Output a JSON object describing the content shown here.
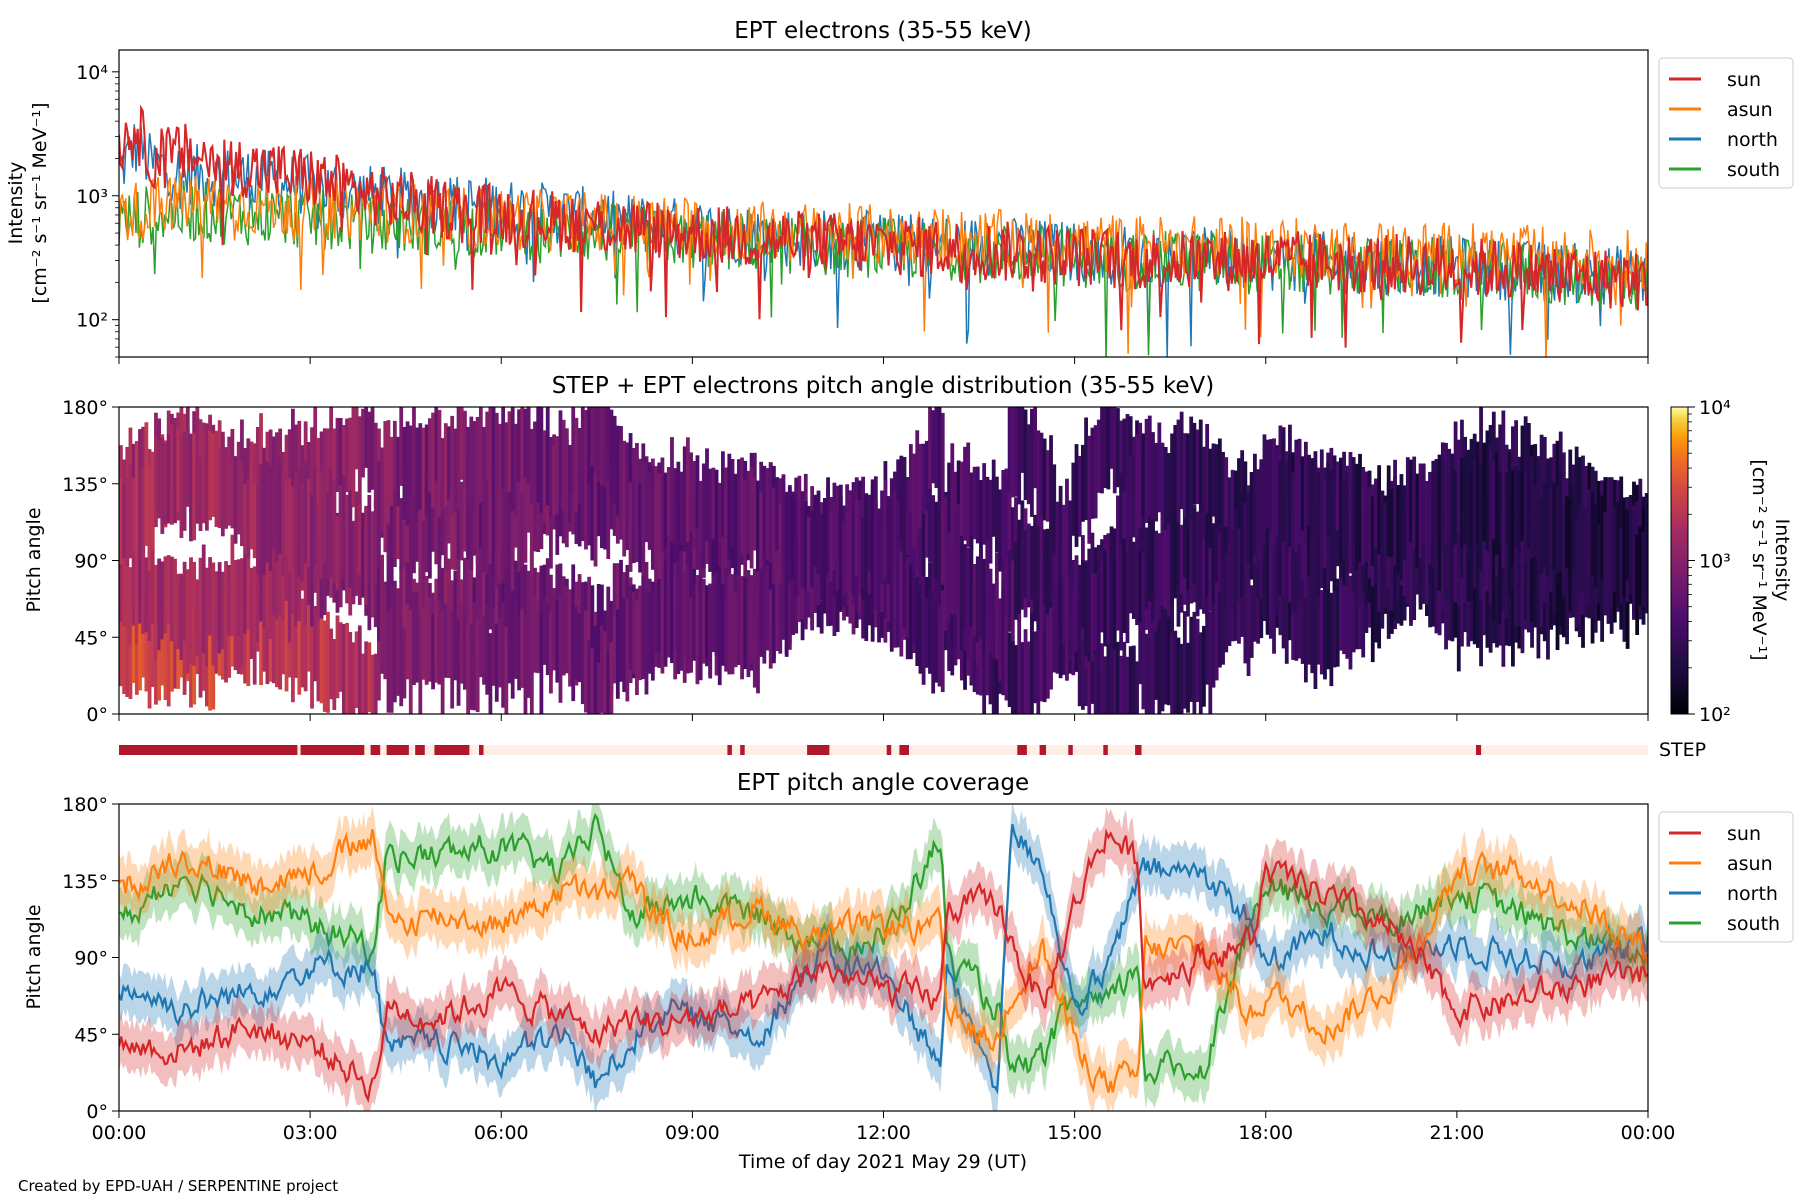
{
  "colors": {
    "sun": "#d62728",
    "asun": "#ff7f0e",
    "north": "#1f77b4",
    "south": "#2ca02c",
    "step_on": "#b2182b",
    "step_off": "#fdeee8"
  },
  "footer": "Created by EPD-UAH / SERPENTINE project",
  "chart_data": [
    {
      "type": "line",
      "title": "EPT electrons (35-55 keV)",
      "ylabel_line1": "Intensity",
      "ylabel_line2": "[cm⁻² s⁻¹ sr⁻¹ MeV⁻¹]",
      "yscale": "log",
      "ylim": [
        50,
        15000
      ],
      "yticks": [
        100,
        1000,
        10000
      ],
      "ytick_labels": [
        "10²",
        "10³",
        "10⁴"
      ],
      "xlim_hours": [
        0,
        24
      ],
      "legend_position": "outside upper right",
      "series": [
        {
          "name": "sun",
          "x_hours": [
            0,
            0.25,
            0.5,
            1,
            1.5,
            2,
            3,
            4,
            5,
            6,
            8,
            10,
            12,
            14,
            16,
            18,
            20,
            22,
            24
          ],
          "values": [
            2500,
            3500,
            2000,
            2200,
            1900,
            1700,
            1400,
            1000,
            800,
            700,
            550,
            450,
            400,
            350,
            300,
            300,
            280,
            250,
            200
          ]
        },
        {
          "name": "asun",
          "x_hours": [
            0,
            0.5,
            1,
            2,
            3,
            4,
            6,
            8,
            10,
            12,
            14,
            16,
            18,
            20,
            22,
            24
          ],
          "values": [
            700,
            800,
            900,
            850,
            800,
            750,
            650,
            600,
            520,
            480,
            430,
            400,
            380,
            360,
            330,
            300
          ]
        },
        {
          "name": "north",
          "x_hours": [
            0,
            0.25,
            0.5,
            1,
            2,
            3,
            4,
            6,
            8,
            10,
            12,
            14,
            16,
            18,
            20,
            22,
            24
          ],
          "values": [
            1500,
            2500,
            1800,
            1500,
            1400,
            1200,
            1000,
            800,
            600,
            480,
            420,
            380,
            330,
            300,
            280,
            250,
            220
          ]
        },
        {
          "name": "south",
          "x_hours": [
            0,
            0.5,
            1,
            2,
            3,
            4,
            6,
            8,
            10,
            12,
            14,
            16,
            18,
            20,
            22,
            24
          ],
          "values": [
            600,
            700,
            750,
            700,
            650,
            600,
            550,
            480,
            420,
            380,
            340,
            300,
            280,
            260,
            240,
            200
          ]
        }
      ]
    },
    {
      "type": "heatmap",
      "title": "STEP + EPT electrons pitch angle distribution (35-55 keV)",
      "ylabel": "Pitch angle",
      "ylim_deg": [
        0,
        180
      ],
      "ytick_labels": [
        "0°",
        "45°",
        "90°",
        "135°",
        "180°"
      ],
      "xlim_hours": [
        0,
        24
      ],
      "colorbar": {
        "label_line1": "Intensity",
        "label_line2": "[cm⁻² s⁻¹ sr⁻¹ MeV⁻¹]",
        "scale": "log",
        "range": [
          100,
          10000
        ],
        "tick_labels": [
          "10²",
          "10³",
          "10⁴"
        ]
      },
      "typical_intensity_by_hour": {
        "x_hours": [
          0,
          2,
          4,
          6,
          8,
          10,
          12,
          14,
          16,
          18,
          20,
          22,
          24
        ],
        "values": [
          1500,
          1300,
          900,
          700,
          600,
          500,
          400,
          350,
          300,
          280,
          250,
          230,
          200
        ]
      }
    },
    {
      "type": "bar",
      "label": "STEP",
      "xlim_hours": [
        0,
        24
      ],
      "active_intervals_hours": [
        [
          0.0,
          2.8
        ],
        [
          2.85,
          3.85
        ],
        [
          3.95,
          4.1
        ],
        [
          4.2,
          4.55
        ],
        [
          4.65,
          4.8
        ],
        [
          4.95,
          5.5
        ],
        [
          5.65,
          5.72
        ],
        [
          9.55,
          9.62
        ],
        [
          9.75,
          9.82
        ],
        [
          10.8,
          11.15
        ],
        [
          12.05,
          12.12
        ],
        [
          12.25,
          12.4
        ],
        [
          14.1,
          14.25
        ],
        [
          14.45,
          14.55
        ],
        [
          14.9,
          14.97
        ],
        [
          15.45,
          15.52
        ],
        [
          15.95,
          16.05
        ],
        [
          21.3,
          21.38
        ]
      ]
    },
    {
      "type": "line",
      "title": "EPT pitch angle coverage",
      "ylabel": "Pitch angle",
      "xlabel": "Time of day 2021 May 29 (UT)",
      "ylim_deg": [
        0,
        180
      ],
      "ytick_labels": [
        "0°",
        "45°",
        "90°",
        "135°",
        "180°"
      ],
      "xtick_labels": [
        "00:00",
        "03:00",
        "06:00",
        "09:00",
        "12:00",
        "15:00",
        "18:00",
        "21:00",
        "00:00"
      ],
      "xlim_hours": [
        0,
        24
      ],
      "legend_position": "outside upper right",
      "x_hours": [
        0,
        1,
        2,
        3,
        4,
        4.2,
        5,
        6,
        7,
        7.5,
        8,
        8.5,
        9,
        10,
        11,
        12,
        12.9,
        13,
        13.8,
        14,
        14.5,
        15,
        15.5,
        16,
        16.1,
        17,
        17.8,
        18,
        19,
        20,
        21,
        22,
        23,
        24
      ],
      "series": [
        {
          "name": "sun",
          "values": [
            40,
            35,
            50,
            40,
            15,
            60,
            55,
            70,
            55,
            45,
            55,
            50,
            55,
            60,
            85,
            70,
            65,
            120,
            120,
            100,
            60,
            120,
            165,
            145,
            75,
            90,
            100,
            140,
            125,
            105,
            60,
            65,
            75,
            80
          ]
        },
        {
          "name": "asun",
          "values": [
            130,
            150,
            135,
            140,
            160,
            110,
            115,
            110,
            130,
            125,
            135,
            110,
            100,
            120,
            100,
            110,
            105,
            55,
            40,
            70,
            95,
            40,
            15,
            20,
            95,
            95,
            55,
            70,
            50,
            75,
            140,
            140,
            120,
            95
          ]
        },
        {
          "name": "north",
          "values": [
            75,
            60,
            70,
            85,
            85,
            35,
            40,
            30,
            45,
            15,
            40,
            60,
            55,
            45,
            90,
            80,
            30,
            80,
            15,
            165,
            145,
            60,
            80,
            135,
            140,
            140,
            110,
            85,
            105,
            90,
            100,
            90,
            85,
            100
          ]
        },
        {
          "name": "south",
          "values": [
            110,
            140,
            120,
            110,
            95,
            150,
            150,
            155,
            140,
            170,
            115,
            120,
            125,
            115,
            100,
            100,
            160,
            90,
            60,
            20,
            30,
            65,
            60,
            85,
            25,
            25,
            115,
            130,
            120,
            110,
            130,
            115,
            100,
            90
          ]
        }
      ]
    }
  ]
}
